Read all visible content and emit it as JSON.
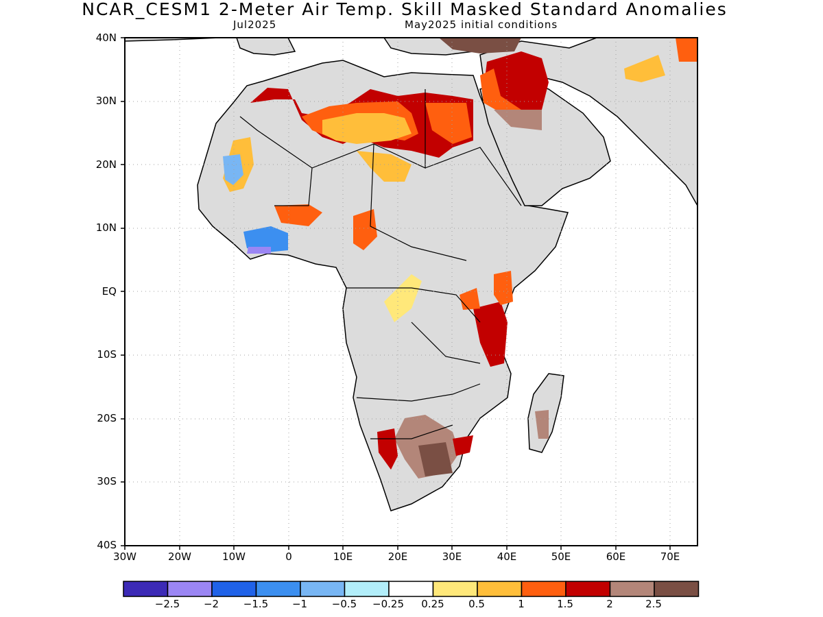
{
  "title": "NCAR_CESM1 2-Meter Air Temp. Skill Masked Standard Anomalies",
  "subtitle_left": "Jul2025",
  "subtitle_right": "May2025 initial conditions",
  "lat_labels": [
    "40N",
    "30N",
    "20N",
    "10N",
    "EQ",
    "10S",
    "20S",
    "30S",
    "40S"
  ],
  "lon_labels": [
    "30W",
    "20W",
    "10W",
    "0",
    "10E",
    "20E",
    "30E",
    "40E",
    "50E",
    "60E",
    "70E"
  ],
  "colorbar": {
    "colors": [
      "#3c2ab6",
      "#9b86f4",
      "#2062e8",
      "#3c8ff0",
      "#78b6f4",
      "#b2eefa",
      "#ffffff",
      "#ffe87a",
      "#ffbe3a",
      "#ff5f0f",
      "#c20000",
      "#b38679",
      "#7a4f44"
    ],
    "labels": [
      "−2.5",
      "−2",
      "−1.5",
      "−1",
      "−0.5",
      "−0.25",
      "0.25",
      "0.5",
      "1",
      "1.5",
      "2",
      "2.5"
    ]
  },
  "colors": {
    "land": "#dcdcdc",
    "ocean": "#ffffff",
    "grid": "#a0a0a0",
    "coast": "#000000"
  }
}
